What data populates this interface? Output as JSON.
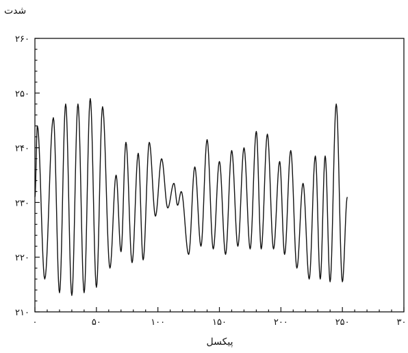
{
  "chart_data": {
    "type": "line",
    "title": "",
    "xlabel": "پیکسل",
    "ylabel": "شدت",
    "xlim": [
      0,
      300
    ],
    "ylim": [
      210,
      260
    ],
    "x_ticks": [
      {
        "value": 0,
        "label": "٠"
      },
      {
        "value": 50,
        "label": "۵٠"
      },
      {
        "value": 100,
        "label": "١٠٠"
      },
      {
        "value": 150,
        "label": "١۵٠"
      },
      {
        "value": 200,
        "label": "٢٠٠"
      },
      {
        "value": 250,
        "label": "٢۵٠"
      },
      {
        "value": 300,
        "label": "٣٠٠"
      }
    ],
    "y_ticks": [
      {
        "value": 210,
        "label": "٢١٠"
      },
      {
        "value": 220,
        "label": "٢٢٠"
      },
      {
        "value": 230,
        "label": "٢٣٠"
      },
      {
        "value": 240,
        "label": "٢۴٠"
      },
      {
        "value": 250,
        "label": "٢۵٠"
      },
      {
        "value": 260,
        "label": "٢۶٠"
      }
    ],
    "grid": false,
    "legend": "none",
    "series": [
      {
        "color": "#111111",
        "extrema": [
          [
            0,
            231
          ],
          [
            2,
            244
          ],
          [
            8,
            216
          ],
          [
            15,
            245.5
          ],
          [
            20,
            213.5
          ],
          [
            25,
            248
          ],
          [
            30,
            213
          ],
          [
            35,
            248
          ],
          [
            40,
            213.5
          ],
          [
            45,
            249
          ],
          [
            50,
            214.5
          ],
          [
            55,
            247.5
          ],
          [
            61,
            218
          ],
          [
            66,
            235
          ],
          [
            70,
            221
          ],
          [
            74,
            241
          ],
          [
            79,
            219
          ],
          [
            84,
            239
          ],
          [
            88,
            219.5
          ],
          [
            93,
            241
          ],
          [
            98,
            227.5
          ],
          [
            103,
            238
          ],
          [
            108,
            229
          ],
          [
            113,
            233.5
          ],
          [
            116,
            229.5
          ],
          [
            119,
            232
          ],
          [
            125,
            220.5
          ],
          [
            130,
            236.5
          ],
          [
            135,
            222
          ],
          [
            140,
            241.5
          ],
          [
            145,
            221.5
          ],
          [
            150,
            237.5
          ],
          [
            155,
            220.5
          ],
          [
            160,
            239.5
          ],
          [
            165,
            222
          ],
          [
            170,
            240
          ],
          [
            175,
            221.5
          ],
          [
            180,
            243
          ],
          [
            184,
            221.5
          ],
          [
            189,
            242.5
          ],
          [
            194,
            221.5
          ],
          [
            199,
            237.5
          ],
          [
            203,
            220.5
          ],
          [
            208,
            239.5
          ],
          [
            213,
            218
          ],
          [
            218,
            233.5
          ],
          [
            223,
            216
          ],
          [
            228,
            238.5
          ],
          [
            232,
            216
          ],
          [
            236,
            238.5
          ],
          [
            240,
            215.5
          ],
          [
            245,
            248
          ],
          [
            250,
            215.5
          ],
          [
            254,
            231
          ]
        ]
      }
    ]
  }
}
